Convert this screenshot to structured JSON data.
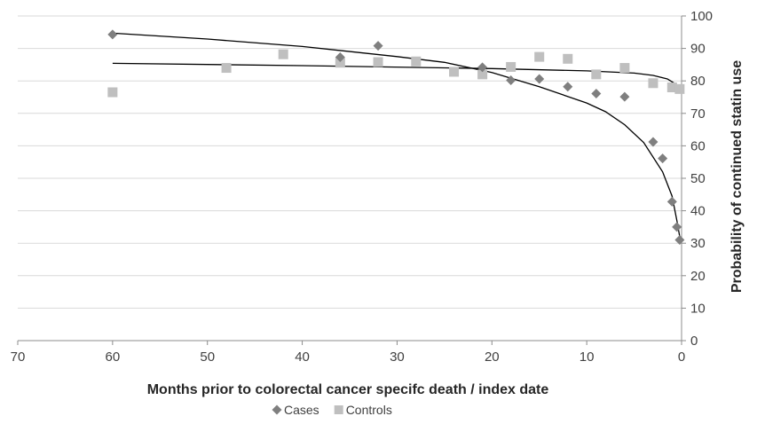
{
  "chart_data": {
    "type": "scatter",
    "title": "",
    "xlabel": "Months prior to colorectal cancer specifc death / index date",
    "ylabel": "Probability of continued statin use",
    "xlim": [
      70,
      0
    ],
    "x_reversed": true,
    "ylim": [
      0,
      100
    ],
    "x_ticks": [
      70,
      60,
      50,
      40,
      30,
      20,
      10,
      0
    ],
    "y_ticks": [
      0,
      10,
      20,
      30,
      40,
      50,
      60,
      70,
      80,
      90,
      100
    ],
    "y_axis_side": "right",
    "grid": "horizontal",
    "legend_position": "bottom",
    "series": [
      {
        "name": "Cases",
        "marker": "diamond",
        "color": "#7f7f7f",
        "points": [
          [
            60,
            94.3
          ],
          [
            36,
            87.3
          ],
          [
            32,
            90.8
          ],
          [
            21,
            84.2
          ],
          [
            18,
            80.2
          ],
          [
            15,
            80.6
          ],
          [
            12,
            78.2
          ],
          [
            9,
            76.1
          ],
          [
            6,
            75.1
          ],
          [
            3,
            61.2
          ],
          [
            2,
            56.1
          ],
          [
            1,
            42.8
          ],
          [
            0.5,
            35.0
          ],
          [
            0.2,
            31.0
          ]
        ]
      },
      {
        "name": "Controls",
        "marker": "square",
        "color": "#bfbfbf",
        "points": [
          [
            60,
            76.5
          ],
          [
            48,
            84.0
          ],
          [
            42,
            88.2
          ],
          [
            36,
            85.6
          ],
          [
            32,
            85.8
          ],
          [
            28,
            86.0
          ],
          [
            24,
            82.8
          ],
          [
            21,
            82.0
          ],
          [
            18,
            84.3
          ],
          [
            15,
            87.4
          ],
          [
            12,
            86.8
          ],
          [
            9,
            82.0
          ],
          [
            6,
            84.0
          ],
          [
            3,
            79.3
          ],
          [
            1,
            78.0
          ],
          [
            0.2,
            77.5
          ]
        ]
      }
    ],
    "trendlines": [
      {
        "series": "Cases",
        "color": "#000000",
        "points": [
          [
            60,
            94.7
          ],
          [
            50,
            92.9
          ],
          [
            40,
            90.6
          ],
          [
            30,
            87.5
          ],
          [
            25,
            85.7
          ],
          [
            20,
            82.6
          ],
          [
            15,
            78.2
          ],
          [
            10,
            73.2
          ],
          [
            8,
            70.5
          ],
          [
            6,
            66.5
          ],
          [
            4,
            61.0
          ],
          [
            2,
            52.0
          ],
          [
            1,
            44.5
          ],
          [
            0.5,
            37.0
          ],
          [
            0.1,
            30.5
          ]
        ]
      },
      {
        "series": "Controls",
        "color": "#000000",
        "points": [
          [
            60,
            85.4
          ],
          [
            40,
            84.7
          ],
          [
            20,
            83.8
          ],
          [
            10,
            83.1
          ],
          [
            5,
            82.4
          ],
          [
            3,
            81.7
          ],
          [
            1.5,
            80.6
          ],
          [
            0.5,
            78.8
          ],
          [
            0.1,
            76.5
          ]
        ]
      }
    ]
  }
}
